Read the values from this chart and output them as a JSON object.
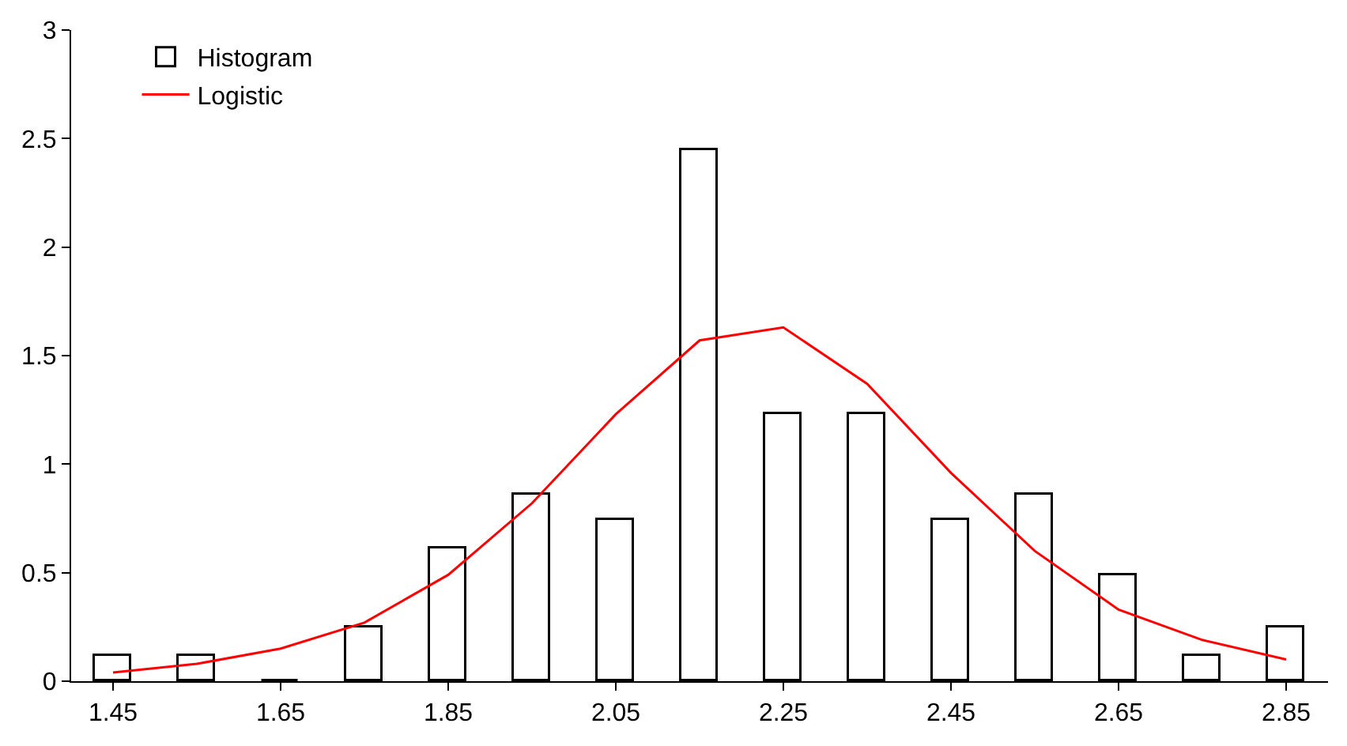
{
  "chart_data": {
    "type": "bar",
    "x": [
      1.45,
      1.55,
      1.65,
      1.75,
      1.85,
      1.95,
      2.05,
      2.15,
      2.25,
      2.35,
      2.45,
      2.55,
      2.65,
      2.75,
      2.85
    ],
    "series": [
      {
        "name": "Histogram",
        "color": "#000000",
        "values": [
          0.12,
          0.12,
          0,
          0.25,
          0.61,
          0.86,
          0.74,
          2.45,
          1.23,
          1.23,
          0.74,
          0.86,
          0.49,
          0.12,
          0.25
        ]
      },
      {
        "name": "Logistic",
        "type": "line",
        "color": "#ff0000",
        "values": [
          0.04,
          0.08,
          0.15,
          0.27,
          0.49,
          0.82,
          1.23,
          1.57,
          1.63,
          1.37,
          0.96,
          0.6,
          0.33,
          0.19,
          0.1
        ]
      }
    ],
    "xlim": [
      1.4,
      2.9
    ],
    "xticks": [
      1.45,
      1.65,
      1.85,
      2.05,
      2.25,
      2.45,
      2.65,
      2.85
    ],
    "ylim": [
      0,
      3
    ],
    "yticks": [
      0,
      0.5,
      1,
      1.5,
      2,
      2.5,
      3
    ],
    "legend": "top left",
    "marker": "none",
    "line_style": "solid"
  }
}
